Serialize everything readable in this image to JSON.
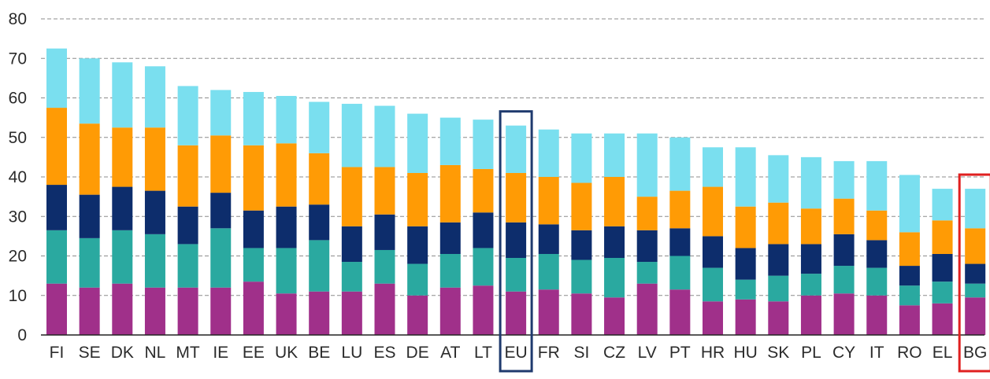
{
  "chart_data": {
    "type": "bar",
    "stacked": true,
    "title": "",
    "xlabel": "",
    "ylabel": "",
    "ylim": [
      0,
      80
    ],
    "yticks": [
      0,
      10,
      20,
      30,
      40,
      50,
      60,
      70,
      80
    ],
    "grid": "horizontal dashed",
    "legend": "none",
    "categories": [
      "FI",
      "SE",
      "DK",
      "NL",
      "MT",
      "IE",
      "EE",
      "UK",
      "BE",
      "LU",
      "ES",
      "DE",
      "AT",
      "LT",
      "EU",
      "FR",
      "SI",
      "CZ",
      "LV",
      "PT",
      "HR",
      "HU",
      "SK",
      "PL",
      "CY",
      "IT",
      "RO",
      "EL",
      "BG"
    ],
    "highlight": [
      {
        "category": "EU",
        "color": "#1f3a6e"
      },
      {
        "category": "BG",
        "color": "#e02020"
      }
    ],
    "series": [
      {
        "color": "#a0308a",
        "values": [
          13,
          12,
          13,
          12,
          12,
          12,
          13.5,
          10.5,
          11,
          11,
          13,
          10,
          12,
          12.5,
          11,
          11.5,
          10.5,
          9.5,
          13,
          11.5,
          8.5,
          9,
          8.5,
          10,
          10.5,
          10,
          7.5,
          8,
          9.5
        ]
      },
      {
        "color": "#2aa9a0",
        "values": [
          13.5,
          12.5,
          13.5,
          13.5,
          11,
          15,
          8.5,
          11.5,
          13,
          7.5,
          8.5,
          8,
          8.5,
          9.5,
          8.5,
          9,
          8.5,
          10,
          5.5,
          8.5,
          8.5,
          5,
          6.5,
          5.5,
          7,
          7,
          5,
          5.5,
          3.5
        ]
      },
      {
        "color": "#0d2d6c",
        "values": [
          11.5,
          11,
          11,
          11,
          9.5,
          9,
          9.5,
          10.5,
          9,
          9,
          9,
          9.5,
          8,
          9,
          9,
          7.5,
          7.5,
          8,
          8,
          7,
          8,
          8,
          8,
          7.5,
          8,
          7,
          5,
          7,
          5
        ]
      },
      {
        "color": "#ff9b05",
        "values": [
          19.5,
          18,
          15,
          16,
          15.5,
          14.5,
          16.5,
          16,
          13,
          15,
          12,
          13.5,
          14.5,
          11,
          12.5,
          12,
          12,
          12.5,
          8.5,
          9.5,
          12.5,
          10.5,
          10.5,
          9,
          9,
          7.5,
          8.5,
          8.5,
          9
        ]
      },
      {
        "color": "#7adfef",
        "values": [
          15,
          16.5,
          16.5,
          15.5,
          15,
          11.5,
          13.5,
          12,
          13,
          16,
          15.5,
          15,
          12,
          12.5,
          12,
          12,
          12.5,
          11,
          16,
          13.5,
          10,
          15,
          12,
          13,
          9.5,
          12.5,
          14.5,
          8,
          10
        ]
      }
    ]
  }
}
